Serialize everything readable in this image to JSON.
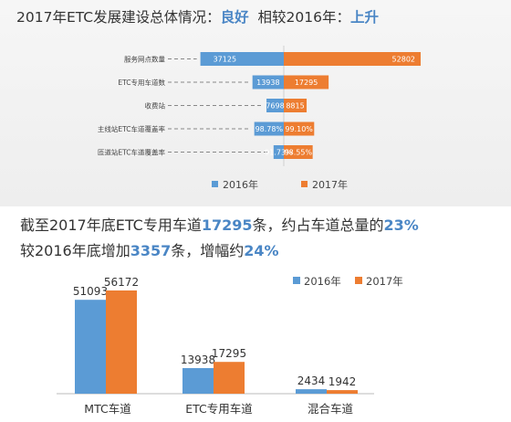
{
  "headline": {
    "prefix": "2017年ETC发展建设总体情况：",
    "status": "良好",
    "compare": "相较2016年：",
    "trend": "上升"
  },
  "colors": {
    "y2016": "#5b9bd5",
    "y2017": "#ed7d31"
  },
  "chart_data": [
    {
      "type": "bar",
      "orientation": "horizontal-butterfly",
      "categories": [
        "服务网点数量",
        "ETC专用车道数",
        "收费站",
        "主线站ETC车道覆盖率",
        "匝道站ETC车道覆盖率"
      ],
      "value_labels_2016": [
        "37125",
        "13938",
        "7698",
        "98.78%",
        "91.73%"
      ],
      "value_labels_2017": [
        "52802",
        "17295",
        "8815",
        "99.10%",
        "98.55%"
      ],
      "series": [
        {
          "name": "2016年",
          "values": [
            37125,
            13938,
            7698,
            98.78,
            91.73
          ]
        },
        {
          "name": "2017年",
          "values": [
            52802,
            17295,
            8815,
            99.1,
            98.55
          ]
        }
      ],
      "legend": [
        "2016年",
        "2017年"
      ],
      "legend_position": "bottom"
    },
    {
      "type": "bar",
      "categories": [
        "MTC车道",
        "ETC专用车道",
        "混合车道"
      ],
      "series": [
        {
          "name": "2016年",
          "values": [
            51093,
            13938,
            2434
          ]
        },
        {
          "name": "2017年",
          "values": [
            56172,
            17295,
            1942
          ]
        }
      ],
      "legend": [
        "2016年",
        "2017年"
      ],
      "legend_position": "top-right"
    }
  ],
  "summary": {
    "line1_a": "截至2017年底ETC专用车道",
    "line1_num": "17295",
    "line1_b": "条，约占车道总量的",
    "line1_pct": "23%",
    "line2_a": "较2016年底增加",
    "line2_num": "3357",
    "line2_b": "条，增幅约",
    "line2_pct": "24%"
  }
}
